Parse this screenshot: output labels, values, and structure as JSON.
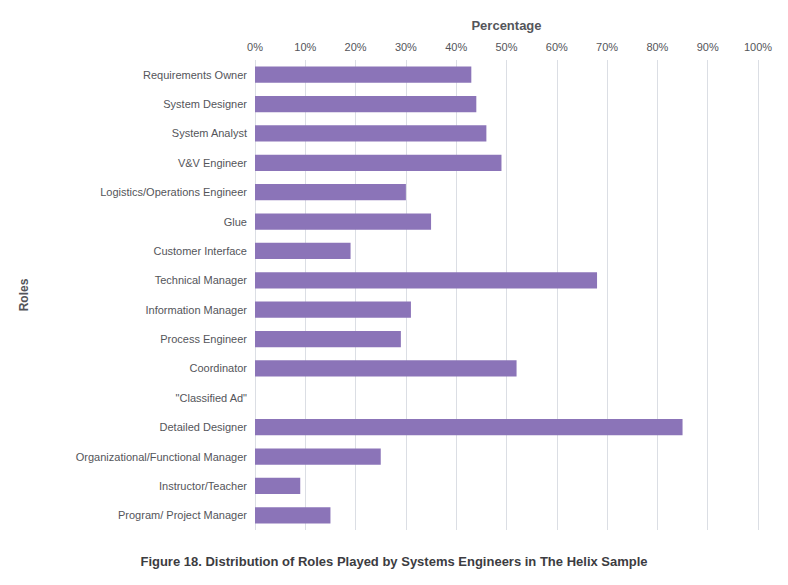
{
  "chart_data": {
    "type": "bar",
    "orientation": "horizontal",
    "categories": [
      "Requirements Owner",
      "System Designer",
      "System Analyst",
      "V&V Engineer",
      "Logistics/Operations Engineer",
      "Glue",
      "Customer Interface",
      "Technical Manager",
      "Information Manager",
      "Process Engineer",
      "Coordinator",
      "\"Classified Ad\"",
      "Detailed Designer",
      "Organizational/Functional Manager",
      "Instructor/Teacher",
      "Program/ Project Manager"
    ],
    "values": [
      43,
      44,
      46,
      49,
      30,
      35,
      19,
      68,
      31,
      29,
      52,
      0,
      85,
      25,
      9,
      15
    ],
    "color": "#8b74b8",
    "xlabel": "Percentage",
    "ylabel": "Roles",
    "caption": "Figure 18. Distribution of Roles Played by Systems Engineers in The Helix Sample",
    "xlim": [
      0,
      100
    ],
    "xticks": [
      {
        "value": 0,
        "label": "0%"
      },
      {
        "value": 10,
        "label": "10%"
      },
      {
        "value": 20,
        "label": "20%"
      },
      {
        "value": 30,
        "label": "30%"
      },
      {
        "value": 40,
        "label": "40%"
      },
      {
        "value": 50,
        "label": "50%"
      },
      {
        "value": 60,
        "label": "60%"
      },
      {
        "value": 70,
        "label": "70%"
      },
      {
        "value": 80,
        "label": "80%"
      },
      {
        "value": 90,
        "label": "90%"
      },
      {
        "value": 100,
        "label": "100%"
      }
    ],
    "grid": true
  }
}
